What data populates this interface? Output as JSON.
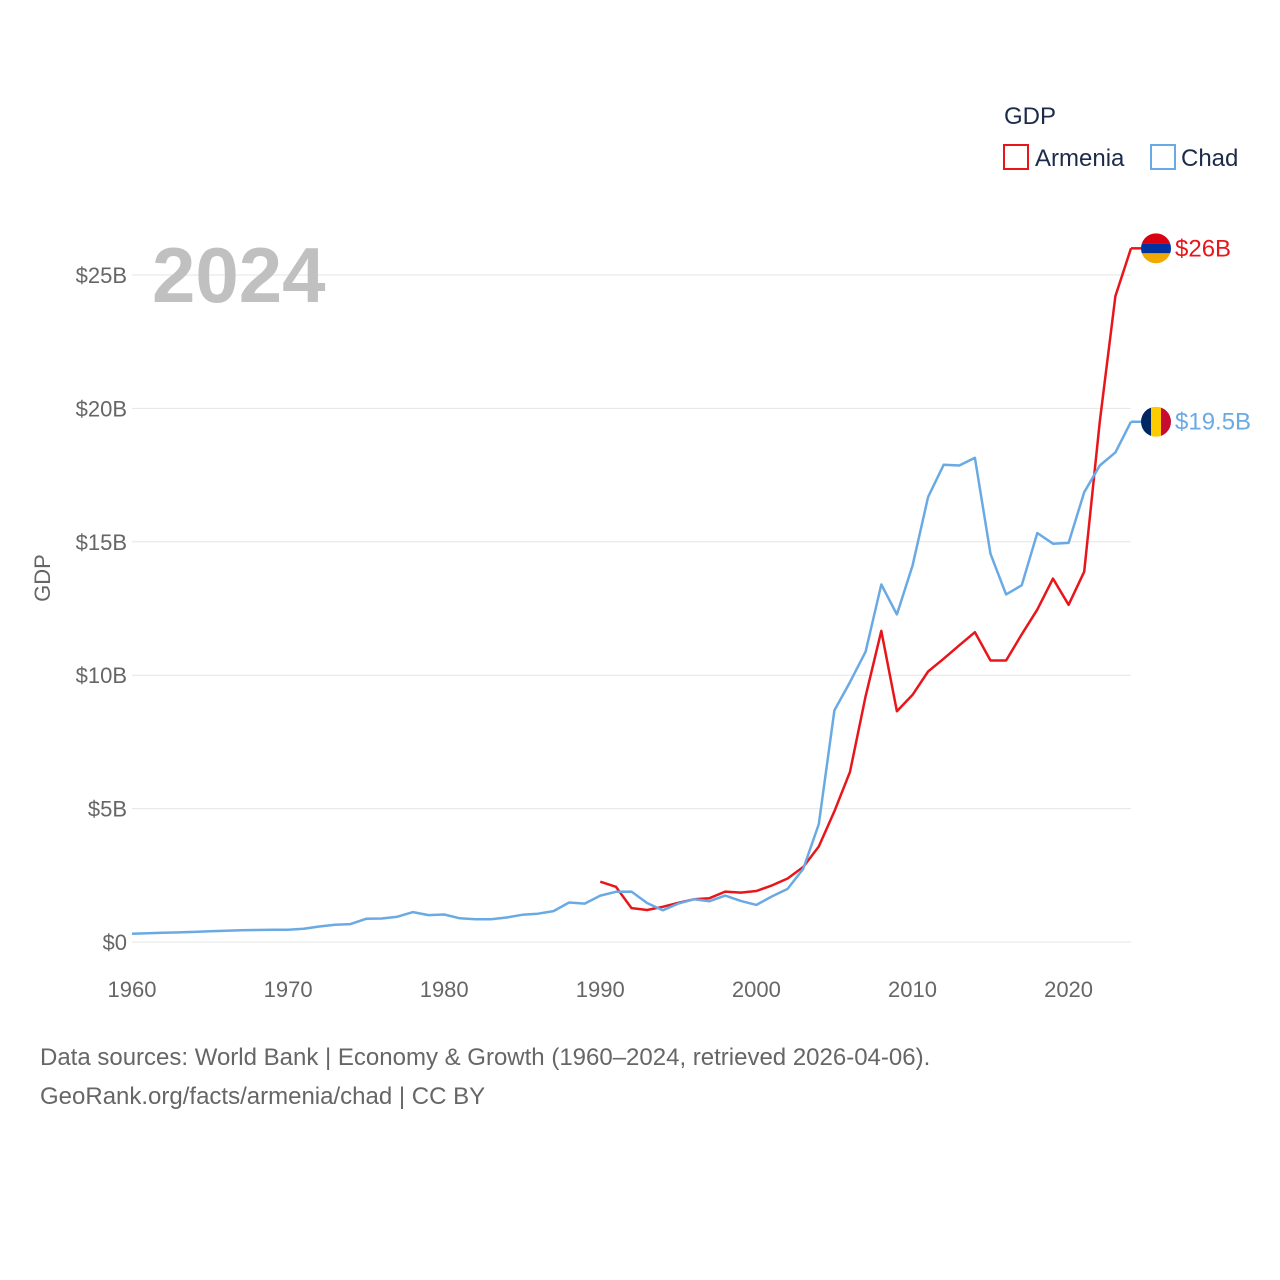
{
  "chart_data": {
    "type": "line",
    "year_label": "2024",
    "ylabel": "GDP",
    "ylim": [
      0,
      27000000000
    ],
    "xlim": [
      1960,
      2024
    ],
    "yticks": [
      {
        "value": 0,
        "label": "$0"
      },
      {
        "value": 5000000000,
        "label": "$5B"
      },
      {
        "value": 10000000000,
        "label": "$10B"
      },
      {
        "value": 15000000000,
        "label": "$15B"
      },
      {
        "value": 20000000000,
        "label": "$20B"
      },
      {
        "value": 25000000000,
        "label": "$25B"
      }
    ],
    "xticks": [
      {
        "value": 1960,
        "label": "1960"
      },
      {
        "value": 1970,
        "label": "1970"
      },
      {
        "value": 1980,
        "label": "1980"
      },
      {
        "value": 1990,
        "label": "1990"
      },
      {
        "value": 2000,
        "label": "2000"
      },
      {
        "value": 2010,
        "label": "2010"
      },
      {
        "value": 2020,
        "label": "2020"
      }
    ],
    "legend": {
      "title": "GDP",
      "position": "top-right"
    },
    "series": [
      {
        "name": "Armenia",
        "color": "#e8161b",
        "end_label": "$26B",
        "flag": "armenia-flag",
        "x": [
          1990,
          1991,
          1992,
          1993,
          1994,
          1995,
          1996,
          1997,
          1998,
          1999,
          2000,
          2001,
          2002,
          2003,
          2004,
          2005,
          2006,
          2007,
          2008,
          2009,
          2010,
          2011,
          2012,
          2013,
          2014,
          2015,
          2016,
          2017,
          2018,
          2019,
          2020,
          2021,
          2022,
          2023,
          2024
        ],
        "y": [
          2260000000,
          2070000000,
          1270000000,
          1200000000,
          1320000000,
          1470000000,
          1600000000,
          1640000000,
          1890000000,
          1850000000,
          1910000000,
          2120000000,
          2380000000,
          2810000000,
          3580000000,
          4900000000,
          6380000000,
          9210000000,
          11660000000,
          8650000000,
          9260000000,
          10140000000,
          10620000000,
          11120000000,
          11610000000,
          10550000000,
          10550000000,
          11530000000,
          12460000000,
          13620000000,
          12640000000,
          13880000000,
          19510000000,
          24210000000,
          26000000000
        ]
      },
      {
        "name": "Chad",
        "color": "#6aaae4",
        "end_label": "$19.5B",
        "flag": "chad-flag",
        "x": [
          1960,
          1961,
          1962,
          1963,
          1964,
          1965,
          1966,
          1967,
          1968,
          1969,
          1970,
          1971,
          1972,
          1973,
          1974,
          1975,
          1976,
          1977,
          1978,
          1979,
          1980,
          1981,
          1982,
          1983,
          1984,
          1985,
          1986,
          1987,
          1988,
          1989,
          1990,
          1991,
          1992,
          1993,
          1994,
          1995,
          1996,
          1997,
          1998,
          1999,
          2000,
          2001,
          2002,
          2003,
          2004,
          2005,
          2006,
          2007,
          2008,
          2009,
          2010,
          2011,
          2012,
          2013,
          2014,
          2015,
          2016,
          2017,
          2018,
          2019,
          2020,
          2021,
          2022,
          2023,
          2024
        ],
        "y": [
          310000000,
          330000000,
          350000000,
          360000000,
          380000000,
          400000000,
          420000000,
          440000000,
          450000000,
          460000000,
          460000000,
          500000000,
          580000000,
          650000000,
          670000000,
          870000000,
          880000000,
          950000000,
          1120000000,
          1010000000,
          1030000000,
          890000000,
          850000000,
          850000000,
          920000000,
          1020000000,
          1060000000,
          1160000000,
          1480000000,
          1440000000,
          1740000000,
          1880000000,
          1890000000,
          1460000000,
          1190000000,
          1440000000,
          1600000000,
          1530000000,
          1740000000,
          1540000000,
          1390000000,
          1710000000,
          1990000000,
          2740000000,
          4420000000,
          8680000000,
          9740000000,
          10880000000,
          13400000000,
          12280000000,
          14100000000,
          16680000000,
          17890000000,
          17860000000,
          18150000000,
          14550000000,
          13030000000,
          13370000000,
          15330000000,
          14930000000,
          14960000000,
          16860000000,
          17860000000,
          18350000000,
          19500000000
        ]
      }
    ]
  },
  "footer": {
    "source_line": "Data sources: World Bank | Economy & Growth (1960–2024, retrieved 2026-04-06).",
    "url_line": "GeoRank.org/facts/armenia/chad | CC BY"
  }
}
